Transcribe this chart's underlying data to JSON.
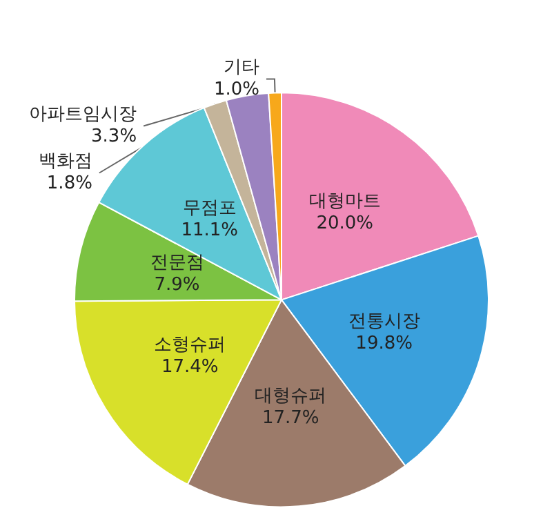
{
  "chart_data": {
    "type": "pie",
    "categories": [
      "대형마트",
      "전통시장",
      "대형슈퍼",
      "소형슈퍼",
      "전문점",
      "무점포",
      "백화점",
      "아파트임시장",
      "기타"
    ],
    "values": [
      20.0,
      19.8,
      17.7,
      17.4,
      7.9,
      11.1,
      1.8,
      3.3,
      1.0
    ],
    "value_labels": [
      "20.0%",
      "19.8%",
      "17.7%",
      "17.4%",
      "7.9%",
      "11.1%",
      "1.8%",
      "3.3%",
      "1.0%"
    ],
    "colors": [
      "#f08ab8",
      "#3aa0dc",
      "#9c7b6a",
      "#d8e02a",
      "#7cc242",
      "#5ec8d6",
      "#c4b49a",
      "#9b82c0",
      "#f7a81b"
    ]
  }
}
